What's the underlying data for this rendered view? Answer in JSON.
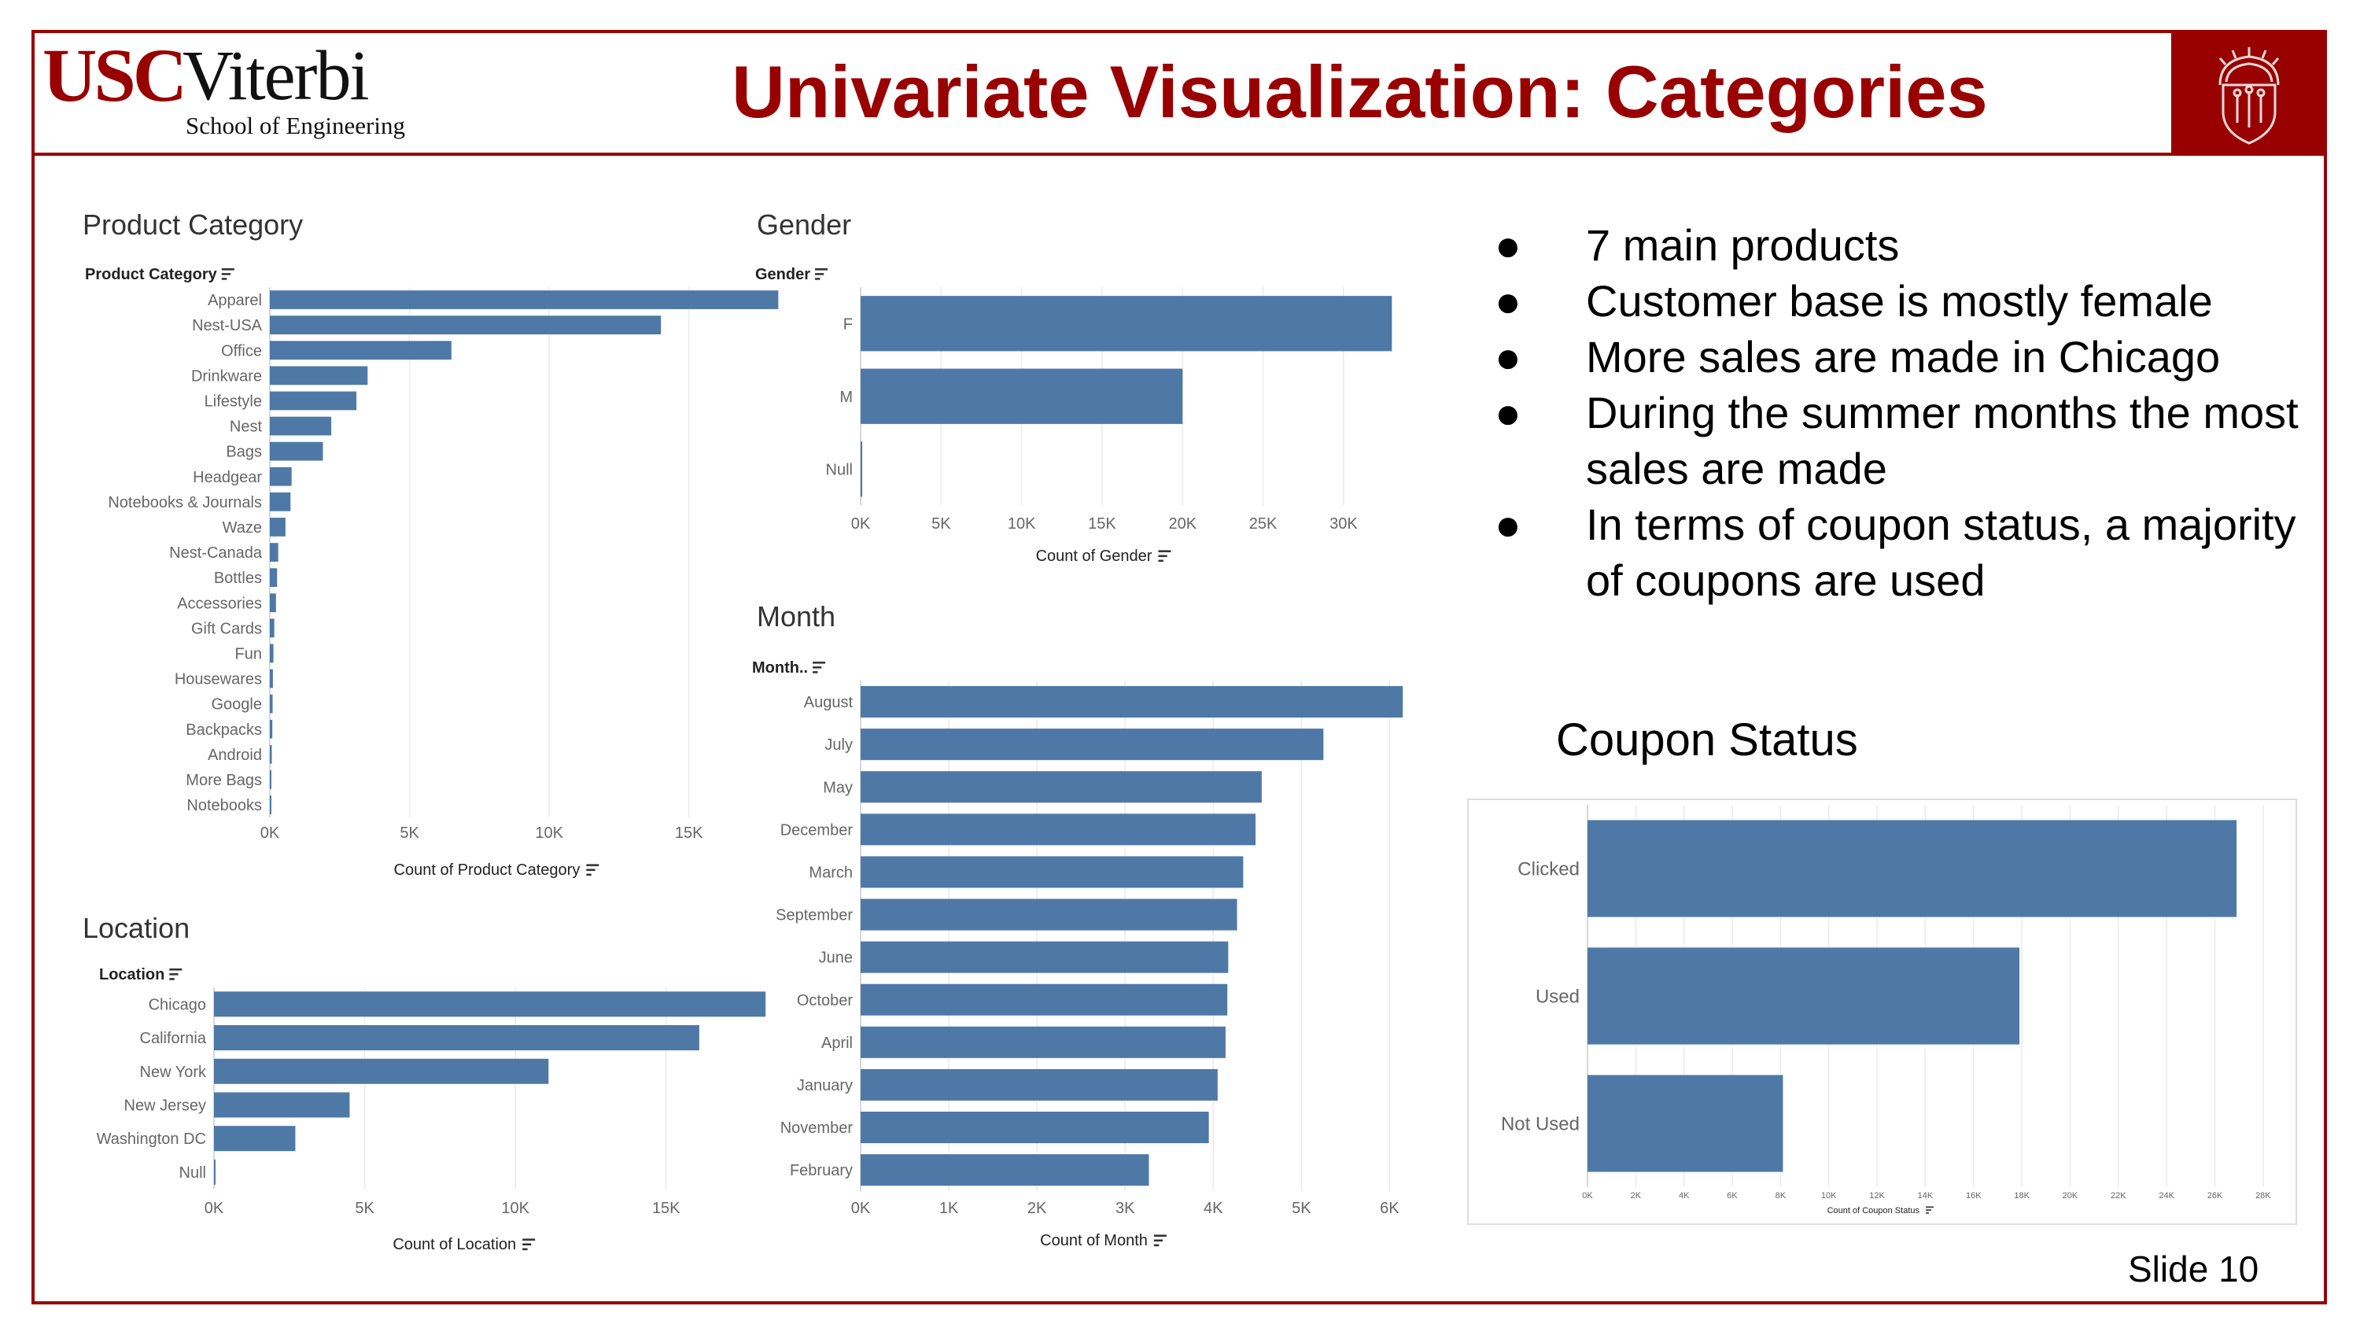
{
  "header": {
    "logo_usc": "USC",
    "logo_viterbi": "Viterbi",
    "logo_sub": "School of Engineering",
    "title": "Univariate Visualization: Categories",
    "slide_number": "Slide 10"
  },
  "colors": {
    "brand": "#990000",
    "bar": "#4e79a7",
    "axis_text": "#666666",
    "grid": "#ebebeb"
  },
  "bullets": [
    "7 main products",
    "Customer base is mostly female",
    "More sales are made in Chicago",
    "During the summer months the most sales are made",
    "In terms of coupon status, a majority of coupons are used"
  ],
  "bullet_marker": "●",
  "sort_icon": "sort-descending-icon",
  "chart_data": [
    {
      "id": "product",
      "type": "bar",
      "title": "Product Category",
      "field_label": "Product Category",
      "xlabel": "Count of Product Category",
      "xlim": [
        0,
        18500
      ],
      "xticks": [
        0,
        5000,
        10000,
        15000
      ],
      "xtick_labels": [
        "0K",
        "5K",
        "10K",
        "15K"
      ],
      "categories": [
        "Apparel",
        "Nest-USA",
        "Office",
        "Drinkware",
        "Lifestyle",
        "Nest",
        "Bags",
        "Headgear",
        "Notebooks & Journals",
        "Waze",
        "Nest-Canada",
        "Bottles",
        "Accessories",
        "Gift Cards",
        "Fun",
        "Housewares",
        "Google",
        "Backpacks",
        "Android",
        "More Bags",
        "Notebooks"
      ],
      "values": [
        18200,
        14000,
        6500,
        3500,
        3100,
        2200,
        1900,
        780,
        740,
        560,
        300,
        260,
        220,
        160,
        130,
        110,
        100,
        90,
        70,
        50,
        30
      ]
    },
    {
      "id": "gender",
      "type": "bar",
      "title": "Gender",
      "field_label": "Gender",
      "xlabel": "Count of Gender",
      "xlim": [
        0,
        34500
      ],
      "xticks": [
        0,
        5000,
        10000,
        15000,
        20000,
        25000,
        30000
      ],
      "xtick_labels": [
        "0K",
        "5K",
        "10K",
        "15K",
        "20K",
        "25K",
        "30K"
      ],
      "categories": [
        "F",
        "M",
        "Null"
      ],
      "values": [
        33000,
        20000,
        100
      ]
    },
    {
      "id": "location",
      "type": "bar",
      "title": "Location",
      "field_label": "Location",
      "xlabel": "Count of Location",
      "xlim": [
        0,
        19000
      ],
      "xticks": [
        0,
        5000,
        10000,
        15000
      ],
      "xtick_labels": [
        "0K",
        "5K",
        "10K",
        "15K"
      ],
      "categories": [
        "Chicago",
        "California",
        "New York",
        "New Jersey",
        "Washington DC",
        "Null"
      ],
      "values": [
        18300,
        16100,
        11100,
        4500,
        2700,
        20
      ]
    },
    {
      "id": "month",
      "type": "bar",
      "title": "Month",
      "field_label": "Month..",
      "xlabel": "Count of Month",
      "xlim": [
        0,
        6300
      ],
      "xticks": [
        0,
        1000,
        2000,
        3000,
        4000,
        5000,
        6000
      ],
      "xtick_labels": [
        "0K",
        "1K",
        "2K",
        "3K",
        "4K",
        "5K",
        "6K"
      ],
      "categories": [
        "August",
        "July",
        "May",
        "December",
        "March",
        "September",
        "June",
        "October",
        "April",
        "January",
        "November",
        "February"
      ],
      "values": [
        6150,
        5250,
        4550,
        4480,
        4340,
        4270,
        4170,
        4160,
        4140,
        4050,
        3950,
        3270
      ]
    },
    {
      "id": "coupon",
      "type": "bar",
      "title": "Coupon Status",
      "field_label": "",
      "xlabel": "Count of Coupon Status",
      "xlim": [
        0,
        28200
      ],
      "xticks": [
        0,
        2000,
        4000,
        6000,
        8000,
        10000,
        12000,
        14000,
        16000,
        18000,
        20000,
        22000,
        24000,
        26000,
        28000
      ],
      "xtick_labels": [
        "0K",
        "2K",
        "4K",
        "6K",
        "8K",
        "10K",
        "12K",
        "14K",
        "16K",
        "18K",
        "20K",
        "22K",
        "24K",
        "26K",
        "28K"
      ],
      "categories": [
        "Clicked",
        "Used",
        "Not Used"
      ],
      "values": [
        26900,
        17900,
        8100
      ]
    }
  ]
}
